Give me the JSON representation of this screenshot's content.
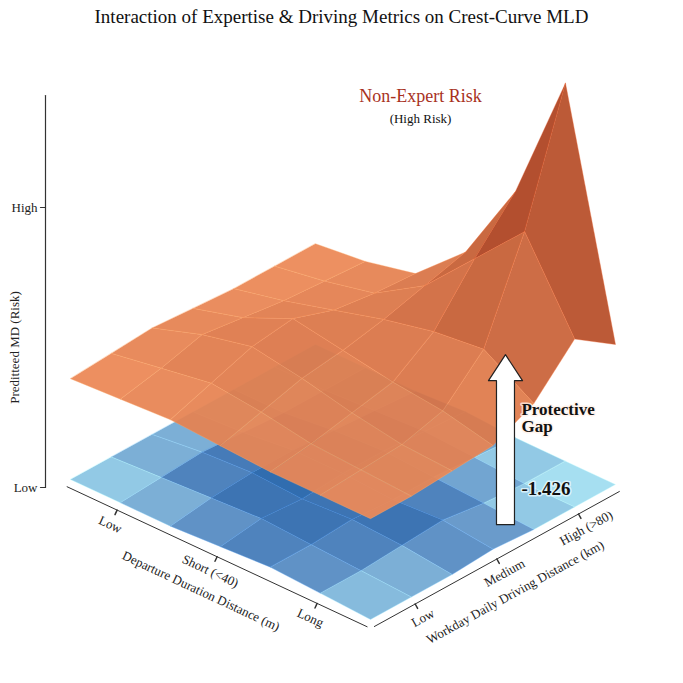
{
  "chart_data": {
    "type": "surface3d",
    "title": "Interaction of Expertise & Driving Metrics on Crest-Curve MLD",
    "x_label": "Departure Duration Distance (m)",
    "y_label": "Workday Daily Driving Distance (km)",
    "z_label": "Preditteed MD (Risk)",
    "x": [
      null,
      "Low",
      null,
      "Short (<40)",
      null,
      "Long",
      null
    ],
    "y": [
      null,
      "Low",
      null,
      "Medium",
      null,
      "High (>80)",
      null
    ],
    "zlim": [
      0,
      1.4
    ],
    "zticks": [
      {
        "value": 0,
        "label": "Low"
      },
      {
        "value": 1,
        "label": "High"
      }
    ],
    "series": [
      {
        "color": "#9edcf0",
        "values": [
          [
            0,
            0,
            0,
            0.01,
            0.02,
            0.01,
            0
          ],
          [
            0,
            0.01,
            0.02,
            0.03,
            0.02,
            0.01,
            0
          ],
          [
            0,
            0.02,
            0.03,
            0.02,
            0.03,
            0.02,
            0
          ],
          [
            0,
            0.01,
            0.03,
            0.03,
            0.02,
            0.03,
            0.01
          ],
          [
            0,
            0,
            0.02,
            0.03,
            0.02,
            0.01,
            0
          ],
          [
            0,
            0,
            0.01,
            0.02,
            0.01,
            0,
            0
          ],
          [
            0,
            0,
            0,
            0.01,
            0,
            0,
            0
          ]
        ]
      },
      {
        "color": "#f08c58",
        "values": [
          [
            0.36,
            0.37,
            0.38,
            0.37,
            0.36,
            0.36,
            0.36
          ],
          [
            0.37,
            0.4,
            0.43,
            0.41,
            0.38,
            0.37,
            0.36
          ],
          [
            0.38,
            0.44,
            0.48,
            0.45,
            0.41,
            0.38,
            0.37
          ],
          [
            0.37,
            0.42,
            0.5,
            0.47,
            0.44,
            0.42,
            0.38
          ],
          [
            0.36,
            0.4,
            0.45,
            0.5,
            0.54,
            0.56,
            0.45
          ],
          [
            0.36,
            0.39,
            0.43,
            0.54,
            0.72,
            0.9,
            0.6
          ],
          [
            0.36,
            0.38,
            0.42,
            0.58,
            0.88,
            1.35,
            0.5
          ]
        ]
      }
    ],
    "annotations": [
      {
        "text": "Non-Expert Risk"
      },
      {
        "text": "(High Risk)"
      },
      {
        "text": "Protective Gap",
        "value": -1.426
      }
    ]
  }
}
